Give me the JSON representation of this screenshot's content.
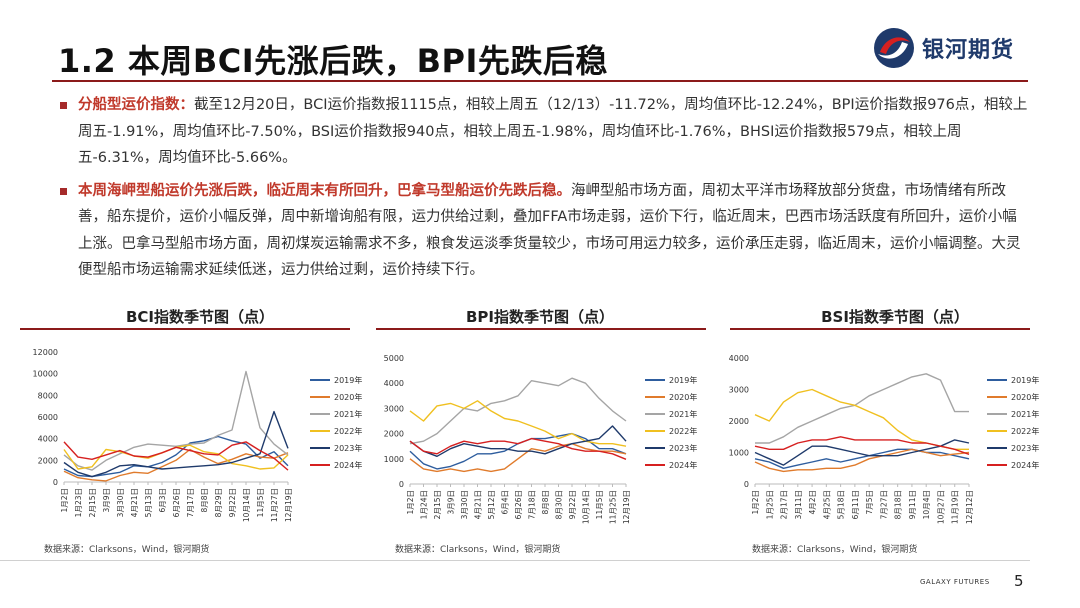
{
  "slide": {
    "title": "1.2 本周BCI先涨后跌，BPI先跌后稳",
    "logo_text": "银河期货",
    "footer_brand": "GALAXY FUTURES",
    "page_number": "5"
  },
  "bullets": [
    {
      "lead": "分船型运价指数：",
      "text": "截至12月20日，BCI运价指数报1115点，相较上周五（12/13）-11.72%，周均值环比-12.24%，BPI运价指数报976点，相较上周五-1.91%，周均值环比-7.50%，BSI运价指数报940点，相较上周五-1.98%，周均值环比-1.76%，BHSI运价指数报579点，相较上周五-6.31%，周均值环比-5.66%。"
    },
    {
      "lead": "本周海岬型船运价先涨后跌，临近周末有所回升，巴拿马型船运价先跌后稳。",
      "text": "海岬型船市场方面，周初太平洋市场释放部分货盘，市场情绪有所改善，船东提价，运价小幅反弹，周中新增询船有限，运力供给过剩，叠加FFA市场走弱，运价下行，临近周末，巴西市场活跃度有所回升，运价小幅上涨。巴拿马型船市场方面，周初煤炭运输需求不多，粮食发运淡季货量较少，市场可用运力较多，运价承压走弱，临近周末，运价小幅调整。大灵便型船市场运输需求延续低迷，运力供给过剩，运价持续下行。"
    }
  ],
  "chart_data": [
    {
      "type": "line",
      "title": "BCI指数季节图（点）",
      "source": "数据来源：Clarksons，Wind，银河期货",
      "x": [
        "1月2日",
        "1月23日",
        "2月15日",
        "3月9日",
        "3月30日",
        "4月21日",
        "5月13日",
        "6月3日",
        "6月26日",
        "7月17日",
        "8月8日",
        "8月29日",
        "9月22日",
        "10月14日",
        "11月5日",
        "11月27日",
        "12月19日"
      ],
      "ylim": [
        0,
        12000
      ],
      "yticks": [
        0,
        2000,
        4000,
        6000,
        8000,
        10000,
        12000
      ],
      "series": [
        {
          "name": "2019年",
          "color": "#2e5d9e",
          "values": [
            1200,
            600,
            500,
            700,
            900,
            1500,
            1400,
            1800,
            2500,
            3600,
            3800,
            4200,
            3800,
            3500,
            2200,
            2800,
            1500
          ]
        },
        {
          "name": "2020年",
          "color": "#e07b2c",
          "values": [
            1000,
            400,
            200,
            100,
            600,
            900,
            800,
            1400,
            2000,
            3000,
            2300,
            1700,
            2100,
            2600,
            2300,
            2200,
            2700
          ]
        },
        {
          "name": "2021年",
          "color": "#a5a5a5",
          "values": [
            2500,
            1500,
            1100,
            2000,
            2600,
            3200,
            3500,
            3400,
            3300,
            3500,
            3600,
            4300,
            4800,
            10200,
            5000,
            3500,
            2500
          ]
        },
        {
          "name": "2022年",
          "color": "#f0c020",
          "values": [
            3000,
            1200,
            1400,
            3000,
            2800,
            2400,
            2200,
            2700,
            3200,
            3400,
            2800,
            2600,
            1700,
            1500,
            1200,
            1300,
            2500
          ]
        },
        {
          "name": "2023年",
          "color": "#1f3a6b",
          "values": [
            1800,
            900,
            500,
            900,
            1500,
            1600,
            1400,
            1200,
            1300,
            1400,
            1500,
            1600,
            1800,
            2200,
            2600,
            6500,
            3100
          ]
        },
        {
          "name": "2024年",
          "color": "#d62020",
          "values": [
            3700,
            2300,
            2100,
            2500,
            2900,
            2400,
            2300,
            2700,
            3200,
            2900,
            2600,
            2500,
            3400,
            3700,
            2900,
            2200,
            1100
          ]
        }
      ]
    },
    {
      "type": "line",
      "title": "BPI指数季节图（点）",
      "source": "数据来源：Clarksons，Wind，银河期货",
      "x": [
        "1月2日",
        "1月24日",
        "2月15日",
        "3月9日",
        "3月30日",
        "4月21日",
        "5月12日",
        "6月4日",
        "6月26日",
        "7月18日",
        "8月8日",
        "8月30日",
        "9月22日",
        "10月14日",
        "11月5日",
        "11月25日",
        "12月19日"
      ],
      "ylim": [
        0,
        5000
      ],
      "yticks": [
        0,
        1000,
        2000,
        3000,
        4000,
        5000
      ],
      "series": [
        {
          "name": "2019年",
          "color": "#2e5d9e",
          "values": [
            1300,
            800,
            600,
            700,
            900,
            1200,
            1200,
            1300,
            1600,
            1800,
            1800,
            1900,
            2000,
            1800,
            1400,
            1400,
            1200
          ]
        },
        {
          "name": "2020年",
          "color": "#e07b2c",
          "values": [
            1000,
            600,
            500,
            600,
            500,
            600,
            500,
            600,
            1000,
            1400,
            1300,
            1500,
            1600,
            1400,
            1300,
            1300,
            1200
          ]
        },
        {
          "name": "2021年",
          "color": "#a5a5a5",
          "values": [
            1600,
            1700,
            2000,
            2500,
            3000,
            2900,
            3200,
            3300,
            3500,
            4100,
            4000,
            3900,
            4200,
            4000,
            3400,
            2900,
            2500
          ]
        },
        {
          "name": "2022年",
          "color": "#f0c020",
          "values": [
            2900,
            2500,
            3100,
            3200,
            3000,
            3300,
            2900,
            2600,
            2500,
            2300,
            2100,
            1800,
            2000,
            1700,
            1600,
            1600,
            1500
          ]
        },
        {
          "name": "2023年",
          "color": "#1f3a6b",
          "values": [
            1700,
            1300,
            1100,
            1400,
            1600,
            1500,
            1400,
            1400,
            1300,
            1300,
            1200,
            1400,
            1600,
            1700,
            1800,
            2300,
            1700
          ]
        },
        {
          "name": "2024年",
          "color": "#d62020",
          "values": [
            1700,
            1300,
            1200,
            1500,
            1700,
            1600,
            1700,
            1700,
            1600,
            1800,
            1700,
            1600,
            1400,
            1300,
            1300,
            1200,
            980
          ]
        }
      ]
    },
    {
      "type": "line",
      "title": "BSI指数季节图（点）",
      "source": "数据来源：Clarksons，Wind，银河期货",
      "x": [
        "1月2日",
        "1月25日",
        "2月17日",
        "3月11日",
        "4月2日",
        "4月25日",
        "5月18日",
        "6月11日",
        "7月5日",
        "7月27日",
        "8月18日",
        "9月11日",
        "10月4日",
        "10月27日",
        "11月19日",
        "12月12日"
      ],
      "ylim": [
        0,
        4000
      ],
      "yticks": [
        0,
        1000,
        2000,
        3000,
        4000
      ],
      "series": [
        {
          "name": "2019年",
          "color": "#2e5d9e",
          "values": [
            800,
            700,
            500,
            600,
            700,
            800,
            700,
            800,
            900,
            1000,
            1100,
            1100,
            1000,
            1000,
            900,
            800
          ]
        },
        {
          "name": "2020年",
          "color": "#e07b2c",
          "values": [
            700,
            500,
            400,
            450,
            450,
            500,
            500,
            600,
            800,
            900,
            1000,
            1100,
            1000,
            900,
            950,
            1000
          ]
        },
        {
          "name": "2021年",
          "color": "#a5a5a5",
          "values": [
            1300,
            1300,
            1500,
            1800,
            2000,
            2200,
            2400,
            2500,
            2800,
            3000,
            3200,
            3400,
            3500,
            3300,
            2300,
            2300
          ]
        },
        {
          "name": "2022年",
          "color": "#f0c020",
          "values": [
            2200,
            2000,
            2600,
            2900,
            3000,
            2800,
            2600,
            2500,
            2300,
            2100,
            1700,
            1400,
            1300,
            1200,
            1100,
            1100
          ]
        },
        {
          "name": "2023年",
          "color": "#1f3a6b",
          "values": [
            1000,
            800,
            600,
            900,
            1200,
            1200,
            1100,
            1000,
            900,
            900,
            900,
            1000,
            1100,
            1200,
            1400,
            1300
          ]
        },
        {
          "name": "2024年",
          "color": "#d62020",
          "values": [
            1200,
            1100,
            1100,
            1300,
            1400,
            1400,
            1500,
            1400,
            1400,
            1400,
            1400,
            1300,
            1300,
            1200,
            1100,
            940
          ]
        }
      ]
    }
  ]
}
